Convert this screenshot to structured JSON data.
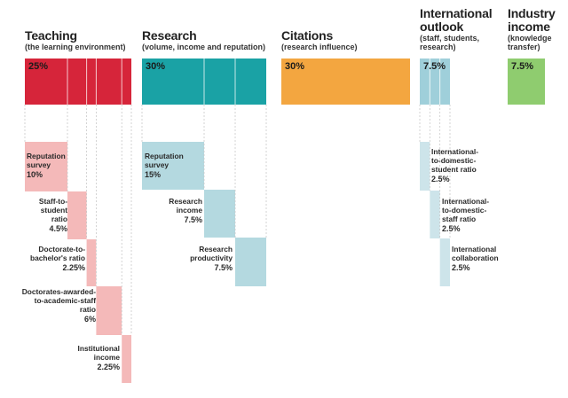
{
  "pillars": [
    {
      "title_lines": [
        "Teaching"
      ],
      "subtitle_lines": [
        "(the learning environment)"
      ],
      "weight": "25%",
      "color": "#d6253a"
    },
    {
      "title_lines": [
        "Research"
      ],
      "subtitle_lines": [
        "(volume, income and reputation)"
      ],
      "weight": "30%",
      "color": "#1aa2a5"
    },
    {
      "title_lines": [
        "Citations"
      ],
      "subtitle_lines": [
        "(research influence)"
      ],
      "weight": "30%",
      "color": "#f3a640"
    },
    {
      "title_lines": [
        "International",
        "outlook"
      ],
      "subtitle_lines": [
        "(staff, students,",
        "research)"
      ],
      "weight": "7.5%",
      "color": "#9fcfda"
    },
    {
      "title_lines": [
        "Industry",
        "income"
      ],
      "subtitle_lines": [
        "(knowledge",
        "transfer)"
      ],
      "weight": "7.5%",
      "color": "#8fcc6f"
    }
  ],
  "sub_metrics": {
    "teaching": [
      {
        "label_lines": [
          "Reputation",
          "survey"
        ],
        "value": "10%",
        "weight": 10
      },
      {
        "label_lines": [
          "Staff-to-",
          "student",
          "ratio"
        ],
        "value": "4.5%",
        "weight": 4.5
      },
      {
        "label_lines": [
          "Doctorate-to-",
          "bachelor's ratio"
        ],
        "value": "2.25%",
        "weight": 2.25
      },
      {
        "label_lines": [
          "Doctorates-awarded-",
          "to-academic-staff",
          "ratio"
        ],
        "value": "6%",
        "weight": 6
      },
      {
        "label_lines": [
          "Institutional",
          "income"
        ],
        "value": "2.25%",
        "weight": 2.25
      }
    ],
    "research": [
      {
        "label_lines": [
          "Reputation",
          "survey"
        ],
        "value": "15%",
        "weight": 15
      },
      {
        "label_lines": [
          "Research",
          "income"
        ],
        "value": "7.5%",
        "weight": 7.5
      },
      {
        "label_lines": [
          "Research",
          "productivity"
        ],
        "value": "7.5%",
        "weight": 7.5
      }
    ],
    "international": [
      {
        "label_lines": [
          "International-",
          "to-domestic-",
          "student ratio"
        ],
        "value": "2.5%",
        "weight": 2.5
      },
      {
        "label_lines": [
          "International-",
          "to-domestic-",
          "staff ratio"
        ],
        "value": "2.5%",
        "weight": 2.5
      },
      {
        "label_lines": [
          "International",
          "collaboration"
        ],
        "value": "2.5%",
        "weight": 2.5
      }
    ]
  },
  "colors": {
    "teaching_light": "#f4b9b9",
    "research_light": "#b4d9e0",
    "international_light": "#cde4ea",
    "guide_line": "#c9c9c9"
  }
}
